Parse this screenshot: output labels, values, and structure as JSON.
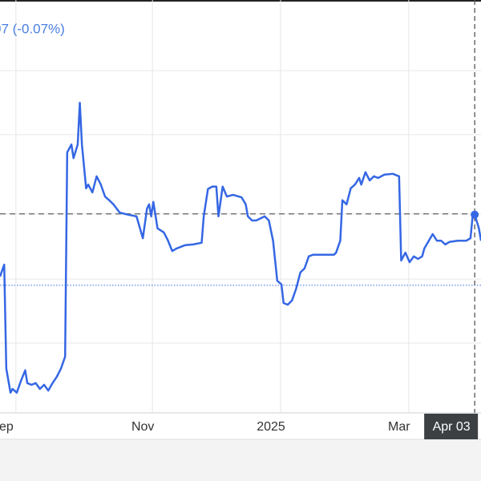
{
  "chart_data": {
    "type": "line",
    "title": "07 (-0.07%)",
    "x": [
      -7,
      -5,
      -4,
      -2,
      -1,
      1,
      3,
      5,
      6,
      8,
      10,
      12,
      14,
      16,
      18,
      20,
      22,
      24,
      25,
      27,
      28,
      30,
      31,
      32,
      34,
      35,
      37,
      39,
      41,
      43,
      45,
      47,
      50,
      54,
      58,
      61,
      63,
      64,
      65,
      66,
      68,
      71,
      73,
      75,
      77,
      81,
      85,
      89,
      90,
      92,
      94,
      96,
      97,
      99,
      101,
      104,
      108,
      110,
      111,
      113,
      115,
      119,
      121,
      123,
      125,
      127,
      128,
      130,
      132,
      134,
      136,
      138,
      140,
      142,
      146,
      152,
      153,
      155,
      156,
      158,
      160,
      162,
      164,
      165,
      167,
      169,
      171,
      173,
      176,
      180,
      183,
      184,
      186,
      188,
      190,
      192,
      194,
      195,
      199,
      201,
      203,
      205,
      207,
      211,
      215,
      217,
      218,
      219,
      221,
      222
    ],
    "series": [
      {
        "color": "#3567e4",
        "values": [
          33.0,
          35.9,
          10.7,
          4.9,
          5.8,
          4.9,
          7.8,
          10.3,
          7.2,
          6.8,
          7.2,
          5.8,
          6.8,
          5.4,
          7.2,
          8.7,
          10.7,
          13.6,
          63.1,
          65.0,
          61.7,
          65.0,
          75.1,
          65.0,
          54.4,
          55.3,
          53.4,
          57.3,
          55.3,
          52.4,
          51.5,
          50.5,
          48.5,
          48.0,
          47.6,
          42.3,
          49.5,
          50.5,
          47.6,
          51.1,
          44.7,
          43.7,
          41.7,
          39.2,
          39.8,
          40.6,
          40.8,
          41.2,
          47.6,
          54.2,
          54.8,
          54.8,
          47.6,
          54.8,
          52.4,
          52.8,
          52.2,
          50.5,
          47.6,
          46.6,
          46.6,
          47.6,
          46.6,
          41.7,
          32.0,
          31.1,
          26.6,
          26.2,
          27.2,
          30.1,
          34.0,
          35.0,
          37.9,
          38.3,
          38.3,
          38.3,
          38.8,
          41.7,
          51.5,
          50.5,
          54.4,
          55.3,
          56.9,
          55.3,
          58.3,
          56.3,
          57.3,
          56.9,
          57.7,
          57.9,
          57.3,
          36.9,
          38.8,
          36.5,
          37.9,
          37.3,
          37.9,
          39.8,
          43.3,
          41.7,
          41.7,
          40.8,
          41.4,
          41.7,
          41.7,
          42.3,
          47.6,
          48.0,
          44.7,
          41.7
        ]
      }
    ],
    "xlim": [
      -7,
      222
    ],
    "ylim": [
      0,
      100
    ],
    "xticks": [
      {
        "value": -4,
        "label": "ep"
      },
      {
        "value": 61,
        "label": "Nov"
      },
      {
        "value": 122,
        "label": "2025"
      },
      {
        "value": 183,
        "label": "Mar"
      }
    ],
    "yticks": [
      16.9,
      32.4,
      48.2,
      67.4,
      82.9
    ],
    "grid": true,
    "reference_lines": [
      {
        "value": 48.2,
        "style": "dashed",
        "color": "#777777"
      },
      {
        "value": 30.9,
        "style": "dotted",
        "color": "#3567e4"
      }
    ],
    "crosshair": {
      "x": 219,
      "label": "Apr 03",
      "point": 107
    }
  }
}
